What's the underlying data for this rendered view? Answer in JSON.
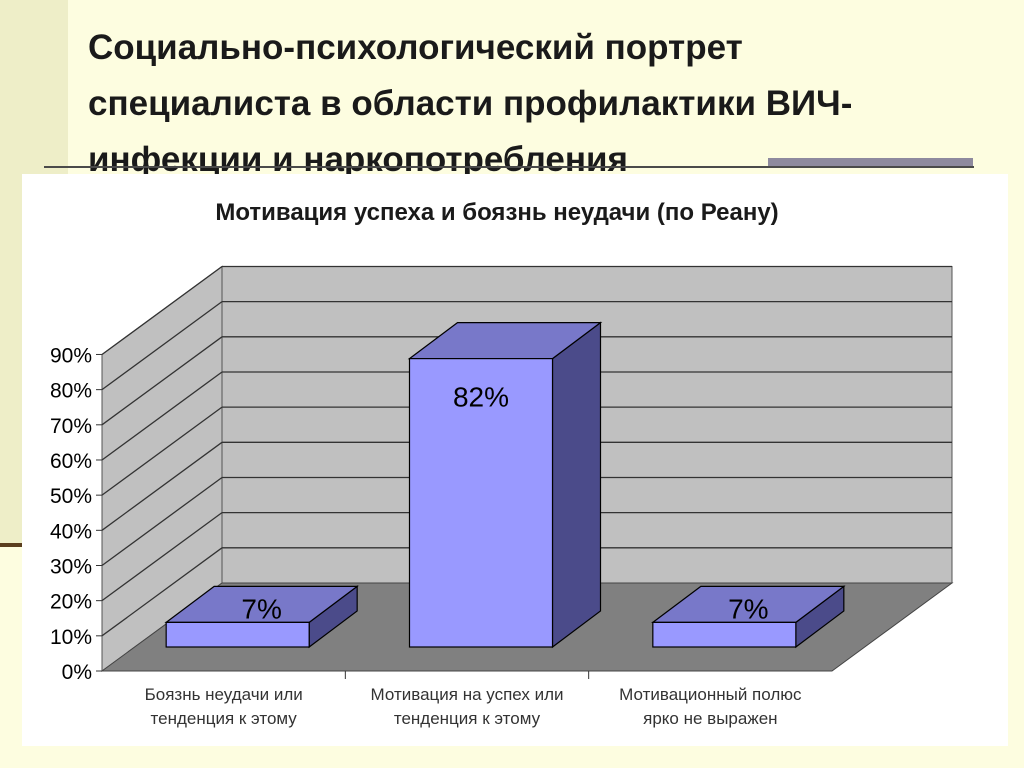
{
  "slide": {
    "title_lines": [
      "Социально-психологический портрет",
      "специалиста в области профилактики ВИЧ-",
      "инфекции и наркопотребления"
    ]
  },
  "chart_data": {
    "type": "bar",
    "title": "Мотивация успеха и боязнь неудачи (по Реану)",
    "categories": [
      [
        "Боязнь неудачи или",
        "тенденция к этому"
      ],
      [
        "Мотивация на успех или",
        "тенденция к этому"
      ],
      [
        "Мотивационный полюс",
        "ярко не выражен"
      ]
    ],
    "values": [
      7,
      82,
      7
    ],
    "data_labels": [
      "7%",
      "82%",
      "7%"
    ],
    "y_ticks": [
      "0%",
      "10%",
      "20%",
      "30%",
      "40%",
      "50%",
      "60%",
      "70%",
      "80%",
      "90%"
    ],
    "ylim": [
      0,
      90
    ],
    "style": "3d-column",
    "grid": true,
    "legend": "none",
    "colors": {
      "bar_front": "#9999ff",
      "bar_top": "#7878c9",
      "bar_side": "#4b4b8a",
      "wall": "#c0c0c0",
      "floor": "#808080"
    }
  }
}
